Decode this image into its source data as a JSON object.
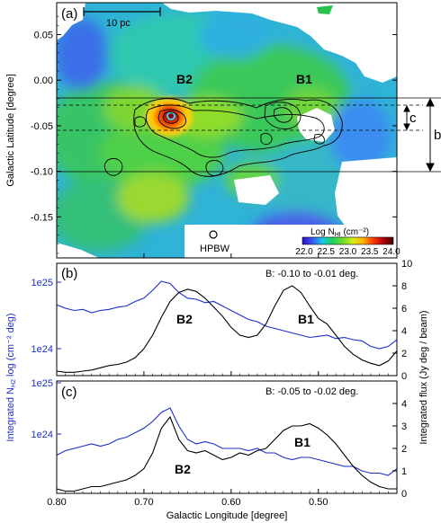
{
  "figure": {
    "panel_a_label": "(a)",
    "panel_b_label": "(b)",
    "panel_c_label": "(c)",
    "scalebar_label": "10 pc",
    "hpbw_label": "HPBW",
    "colorbar_title": "Log N",
    "colorbar_title_sub": "HI",
    "colorbar_title_unit": " (cm⁻²)",
    "colorbar_ticks": [
      "22.0",
      "22.5",
      "23.0",
      "23.5",
      "24.0"
    ],
    "colorbar_colors": [
      "#2b0fcf",
      "#3a57f0",
      "#19c7e6",
      "#1fd15a",
      "#6fdc2a",
      "#d8ec1c",
      "#ffb200",
      "#ff3a00",
      "#b3000a",
      "#3a0000"
    ],
    "region_b_label": "b",
    "region_c_label": "c",
    "b1_label": "B1",
    "b2_label": "B2",
    "range_b_text": "B: -0.10 to -0.01 deg.",
    "range_c_text": "B: -0.05 to -0.02 deg.",
    "blue_color": "#1a2ecc"
  },
  "chart_data": [
    {
      "type": "heatmap",
      "panel": "(a)",
      "ylabel": "Galactic Latitude [degree]",
      "ylim": [
        -0.195,
        0.085
      ],
      "xlim": [
        0.8,
        0.41
      ],
      "yticks": [
        "0.05",
        "0.00",
        "-0.05",
        "-0.10",
        "-0.15"
      ],
      "ytick_values": [
        0.05,
        0.0,
        -0.05,
        -0.1,
        -0.15
      ],
      "hlines_solid": [
        -0.01,
        -0.1
      ],
      "hlines_dashed": [
        -0.02,
        -0.05
      ],
      "peak": {
        "l": 0.667,
        "b": -0.03
      }
    },
    {
      "type": "line",
      "panel": "(b)",
      "xlim": [
        0.8,
        0.41
      ],
      "left_yticks": [
        "1e25",
        "1e24"
      ],
      "right_ylim": [
        0,
        10
      ],
      "right_yticks": [
        "0",
        "2",
        "4",
        "6",
        "8",
        "10"
      ],
      "series": [
        {
          "color": "#1a2ecc",
          "axis": "left",
          "x": [
            0.8,
            0.79,
            0.78,
            0.77,
            0.76,
            0.75,
            0.74,
            0.73,
            0.72,
            0.71,
            0.7,
            0.69,
            0.68,
            0.67,
            0.66,
            0.65,
            0.64,
            0.63,
            0.62,
            0.61,
            0.6,
            0.59,
            0.58,
            0.57,
            0.56,
            0.55,
            0.54,
            0.53,
            0.52,
            0.51,
            0.5,
            0.49,
            0.48,
            0.47,
            0.46,
            0.45,
            0.44,
            0.43,
            0.42,
            0.41
          ],
          "values": [
            6.3,
            6.0,
            5.8,
            5.9,
            5.6,
            5.8,
            5.9,
            6.1,
            6.2,
            6.6,
            6.9,
            7.6,
            8.4,
            8.2,
            7.4,
            6.9,
            6.8,
            6.5,
            6.6,
            6.2,
            5.8,
            5.4,
            5.0,
            4.8,
            4.4,
            4.2,
            4.0,
            3.8,
            3.6,
            3.4,
            3.5,
            3.6,
            3.3,
            3.4,
            3.2,
            3.1,
            2.6,
            2.4,
            2.6,
            3.2
          ]
        },
        {
          "color": "#000000",
          "axis": "right",
          "x": [
            0.8,
            0.79,
            0.78,
            0.77,
            0.76,
            0.75,
            0.74,
            0.73,
            0.72,
            0.71,
            0.7,
            0.69,
            0.68,
            0.67,
            0.66,
            0.65,
            0.64,
            0.63,
            0.62,
            0.61,
            0.6,
            0.59,
            0.58,
            0.57,
            0.56,
            0.55,
            0.54,
            0.53,
            0.52,
            0.51,
            0.5,
            0.49,
            0.48,
            0.47,
            0.46,
            0.45,
            0.44,
            0.43,
            0.42,
            0.41
          ],
          "values": [
            0.4,
            0.3,
            0.3,
            0.4,
            0.5,
            0.7,
            0.9,
            1.0,
            1.2,
            1.6,
            2.4,
            3.6,
            5.2,
            6.6,
            7.4,
            7.7,
            7.5,
            6.9,
            6.1,
            5.3,
            4.3,
            3.6,
            3.4,
            3.6,
            4.6,
            6.2,
            7.6,
            8.0,
            7.4,
            6.2,
            5.1,
            4.6,
            3.6,
            2.6,
            1.9,
            1.4,
            1.1,
            0.9,
            1.3,
            2.2
          ]
        }
      ]
    },
    {
      "type": "line",
      "panel": "(c)",
      "xlabel": "Galactic Longitude [degree]",
      "xlim": [
        0.8,
        0.41
      ],
      "xticks": [
        "0.80",
        "0.70",
        "0.60",
        "0.50"
      ],
      "xtick_values": [
        0.8,
        0.7,
        0.6,
        0.5
      ],
      "left_yticks": [
        "1e25",
        "1e24"
      ],
      "right_ylim": [
        0,
        5
      ],
      "right_yticks": [
        "0",
        "1",
        "2",
        "3",
        "4"
      ],
      "series": [
        {
          "color": "#1a2ecc",
          "axis": "left",
          "x": [
            0.8,
            0.79,
            0.78,
            0.77,
            0.76,
            0.75,
            0.74,
            0.73,
            0.72,
            0.71,
            0.7,
            0.69,
            0.68,
            0.67,
            0.66,
            0.65,
            0.64,
            0.63,
            0.62,
            0.61,
            0.6,
            0.59,
            0.58,
            0.57,
            0.56,
            0.55,
            0.54,
            0.53,
            0.52,
            0.51,
            0.5,
            0.49,
            0.48,
            0.47,
            0.46,
            0.45,
            0.44,
            0.43,
            0.42,
            0.41
          ],
          "values": [
            1.7,
            1.9,
            2.0,
            2.1,
            2.2,
            2.1,
            2.2,
            2.4,
            2.5,
            2.7,
            2.9,
            3.2,
            3.6,
            3.8,
            3.0,
            2.4,
            2.2,
            2.3,
            2.2,
            2.0,
            2.0,
            2.0,
            1.9,
            2.0,
            1.8,
            1.8,
            1.6,
            1.5,
            1.6,
            1.6,
            1.5,
            1.4,
            1.3,
            1.2,
            1.2,
            1.0,
            0.9,
            0.9,
            0.8,
            1.1
          ]
        },
        {
          "color": "#000000",
          "axis": "right",
          "x": [
            0.8,
            0.79,
            0.78,
            0.77,
            0.76,
            0.75,
            0.74,
            0.73,
            0.72,
            0.71,
            0.7,
            0.69,
            0.68,
            0.67,
            0.66,
            0.65,
            0.64,
            0.63,
            0.62,
            0.61,
            0.6,
            0.59,
            0.58,
            0.57,
            0.56,
            0.55,
            0.54,
            0.53,
            0.52,
            0.51,
            0.5,
            0.49,
            0.48,
            0.47,
            0.46,
            0.45,
            0.44,
            0.43,
            0.42,
            0.41
          ],
          "values": [
            0.2,
            0.1,
            0.1,
            0.2,
            0.3,
            0.3,
            0.4,
            0.5,
            0.6,
            0.8,
            1.1,
            1.8,
            2.9,
            3.4,
            2.4,
            1.9,
            1.8,
            1.9,
            1.7,
            1.5,
            1.6,
            1.8,
            1.7,
            1.9,
            2.0,
            2.4,
            2.8,
            3.0,
            3.0,
            3.1,
            2.9,
            2.6,
            2.2,
            1.7,
            1.2,
            0.8,
            0.5,
            0.3,
            0.2,
            0.2
          ]
        }
      ]
    }
  ],
  "shared_left_label": {
    "main": "Integrated N",
    "sub": "H2",
    "unit": " log (cm⁻² deg)"
  },
  "shared_right_label": "Integrated flux (Jy deg / beam)"
}
